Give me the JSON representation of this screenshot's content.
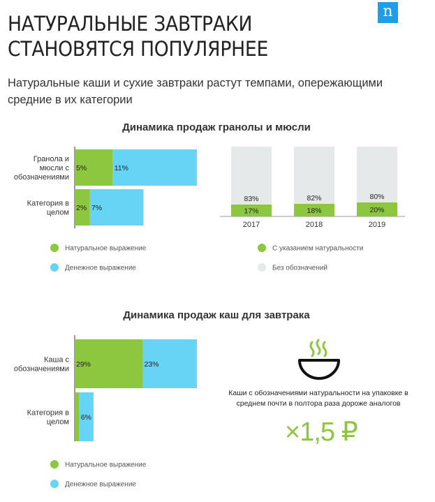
{
  "brand": {
    "logo_letter": "n",
    "logo_color": "#1e9de8"
  },
  "header": {
    "title": "НАТУРАЛЬНЫЕ ЗАВТРАКИ СТАНОВЯТСЯ ПОПУЛЯРНЕЕ",
    "subtitle": "Натуральные каши и сухие завтраки растут темпами, опережающими средние в их категории"
  },
  "colors": {
    "natural": "#8dc63f",
    "money": "#67d4f5",
    "unlabeled": "#e6e9ea",
    "axis": "#555555"
  },
  "chart_data": [
    {
      "type": "bar",
      "orientation": "horizontal",
      "stacked": true,
      "title": "Динамика продаж гранолы и мюсли",
      "categories": [
        "Гранола и мюсли с обозначениями",
        "Категория в целом"
      ],
      "category_lines": [
        [
          "Гранола и",
          "мюсли с",
          "обозначениями"
        ],
        [
          "Категория в",
          "целом"
        ]
      ],
      "series": [
        {
          "name": "Натуральное выражение",
          "values": [
            5,
            2
          ],
          "labels": [
            "5%",
            "2%"
          ]
        },
        {
          "name": "Денежное выражение",
          "values": [
            11,
            7
          ],
          "labels": [
            "11%",
            "7%"
          ]
        }
      ],
      "legend": [
        "Натуральное выражение",
        "Денежное выражение"
      ]
    },
    {
      "type": "bar",
      "orientation": "vertical",
      "stacked": true,
      "percent_stacked": true,
      "categories": [
        "2017",
        "2018",
        "2019"
      ],
      "series": [
        {
          "name": "С указанием натуральности",
          "values": [
            17,
            18,
            20
          ],
          "labels": [
            "17%",
            "18%",
            "20%"
          ]
        },
        {
          "name": "Без обозначений",
          "values": [
            83,
            82,
            80
          ],
          "labels": [
            "83%",
            "82%",
            "80%"
          ]
        }
      ],
      "ylim": [
        0,
        100
      ],
      "legend": [
        "С указанием натуральности",
        "Без обозначений"
      ]
    },
    {
      "type": "bar",
      "orientation": "horizontal",
      "stacked": true,
      "title": "Динамика продаж каш для завтрака",
      "categories": [
        "Каша с обозначениями",
        "Категория в целом"
      ],
      "category_lines": [
        [
          "Каша с",
          "обозначениями"
        ],
        [
          "Категория в",
          "целом"
        ]
      ],
      "series": [
        {
          "name": "Натуральное выражение",
          "values": [
            29,
            2
          ],
          "labels": [
            "29%",
            ""
          ]
        },
        {
          "name": "Денежное выражение",
          "values": [
            23,
            6
          ],
          "labels": [
            "23%",
            "6%"
          ]
        }
      ],
      "legend": [
        "Натуральное выражение",
        "Денежное выражение"
      ]
    }
  ],
  "callout": {
    "icon": "bowl-steam-icon",
    "note": "Каши с обозначениями натуральности на упаковке в среднем почти в полтора раза дороже аналогов",
    "price": "×1,5 ₽"
  }
}
